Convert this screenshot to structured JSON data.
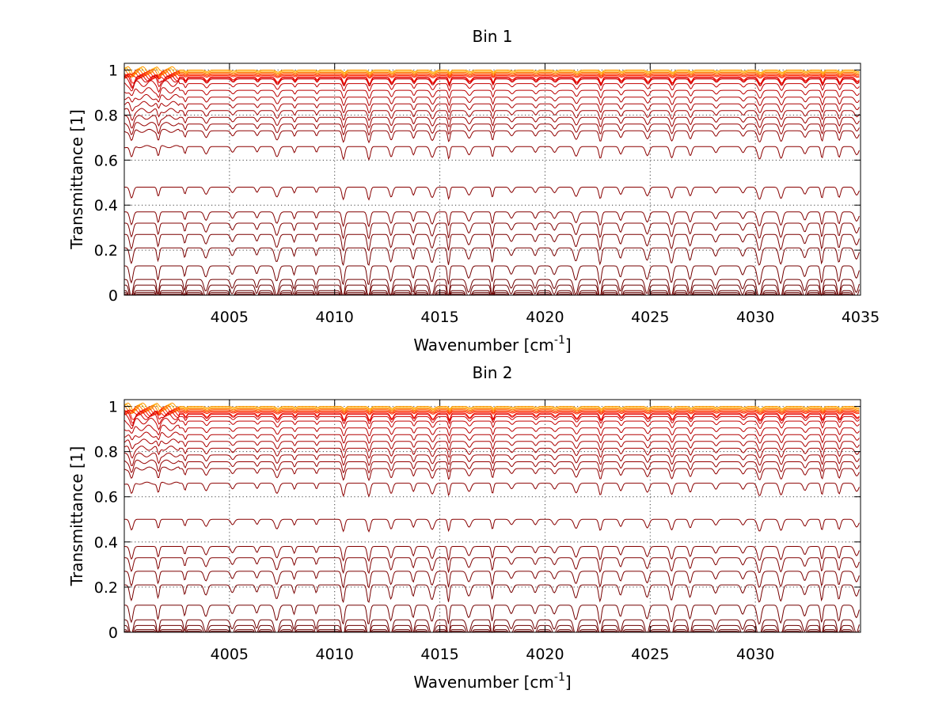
{
  "chart_data": [
    {
      "type": "line",
      "title": "Bin 1",
      "xlabel_main": "Wavenumber [cm",
      "xlabel_sup": "-1",
      "xlabel_end": "]",
      "ylabel": "Transmittance [1]",
      "xlim": [
        4000.0,
        4035.0
      ],
      "ylim": [
        0,
        1.03
      ],
      "xticks": [
        4005,
        4010,
        4015,
        4020,
        4025,
        4030,
        4035
      ],
      "yticks": [
        0,
        0.2,
        0.4,
        0.6,
        0.8,
        1
      ],
      "ytick_labels": [
        "0",
        "0.2",
        "0.4",
        "0.6",
        "0.8",
        "1"
      ],
      "grid": true,
      "series_baselines": [
        1.0,
        0.995,
        0.99,
        0.985,
        0.98,
        0.975,
        0.97,
        0.965,
        0.96,
        0.94,
        0.91,
        0.88,
        0.85,
        0.82,
        0.79,
        0.76,
        0.73,
        0.66,
        0.48,
        0.37,
        0.32,
        0.27,
        0.21,
        0.13,
        0.07,
        0.045,
        0.02,
        0.012,
        0.005,
        0.001
      ],
      "series_colors": [
        "#ff9900",
        "#ffb000",
        "#ff7a00",
        "#ff5a00",
        "#ff3a00",
        "#ff2000",
        "#f01000",
        "#e00000",
        "#d00000",
        "#c40000",
        "#bb0000",
        "#b20000",
        "#aa0000",
        "#a30000",
        "#9c0000",
        "#960000",
        "#900000",
        "#8c0000",
        "#880000",
        "#840000",
        "#800000",
        "#7c0000",
        "#780000",
        "#740000",
        "#700000",
        "#6c0000",
        "#680000",
        "#640000",
        "#600000",
        "#5a0000"
      ]
    },
    {
      "type": "line",
      "title": "Bin 2",
      "xlabel_main": "Wavenumber [cm",
      "xlabel_sup": "-1",
      "xlabel_end": "]",
      "ylabel": "Transmittance [1]",
      "xlim": [
        4000.0,
        4035.0
      ],
      "ylim": [
        0,
        1.03
      ],
      "xticks": [
        4005,
        4010,
        4015,
        4020,
        4025,
        4030
      ],
      "yticks": [
        0,
        0.2,
        0.4,
        0.6,
        0.8,
        1
      ],
      "ytick_labels": [
        "0",
        "0.2",
        "0.4",
        "0.6",
        "0.8",
        "1"
      ],
      "grid": true,
      "series_baselines": [
        1.0,
        0.995,
        0.99,
        0.985,
        0.98,
        0.975,
        0.97,
        0.965,
        0.955,
        0.935,
        0.905,
        0.875,
        0.845,
        0.815,
        0.785,
        0.755,
        0.725,
        0.66,
        0.5,
        0.38,
        0.33,
        0.27,
        0.21,
        0.12,
        0.055,
        0.03,
        0.012,
        0.005,
        0.001
      ],
      "series_colors": [
        "#ff9900",
        "#ffb000",
        "#ff7a00",
        "#ff5a00",
        "#ff3a00",
        "#ff2000",
        "#f01000",
        "#e00000",
        "#d00000",
        "#c40000",
        "#bb0000",
        "#b20000",
        "#aa0000",
        "#a30000",
        "#9c0000",
        "#960000",
        "#900000",
        "#8c0000",
        "#880000",
        "#840000",
        "#800000",
        "#7c0000",
        "#780000",
        "#740000",
        "#700000",
        "#6c0000",
        "#680000",
        "#640000",
        "#600000"
      ]
    }
  ]
}
